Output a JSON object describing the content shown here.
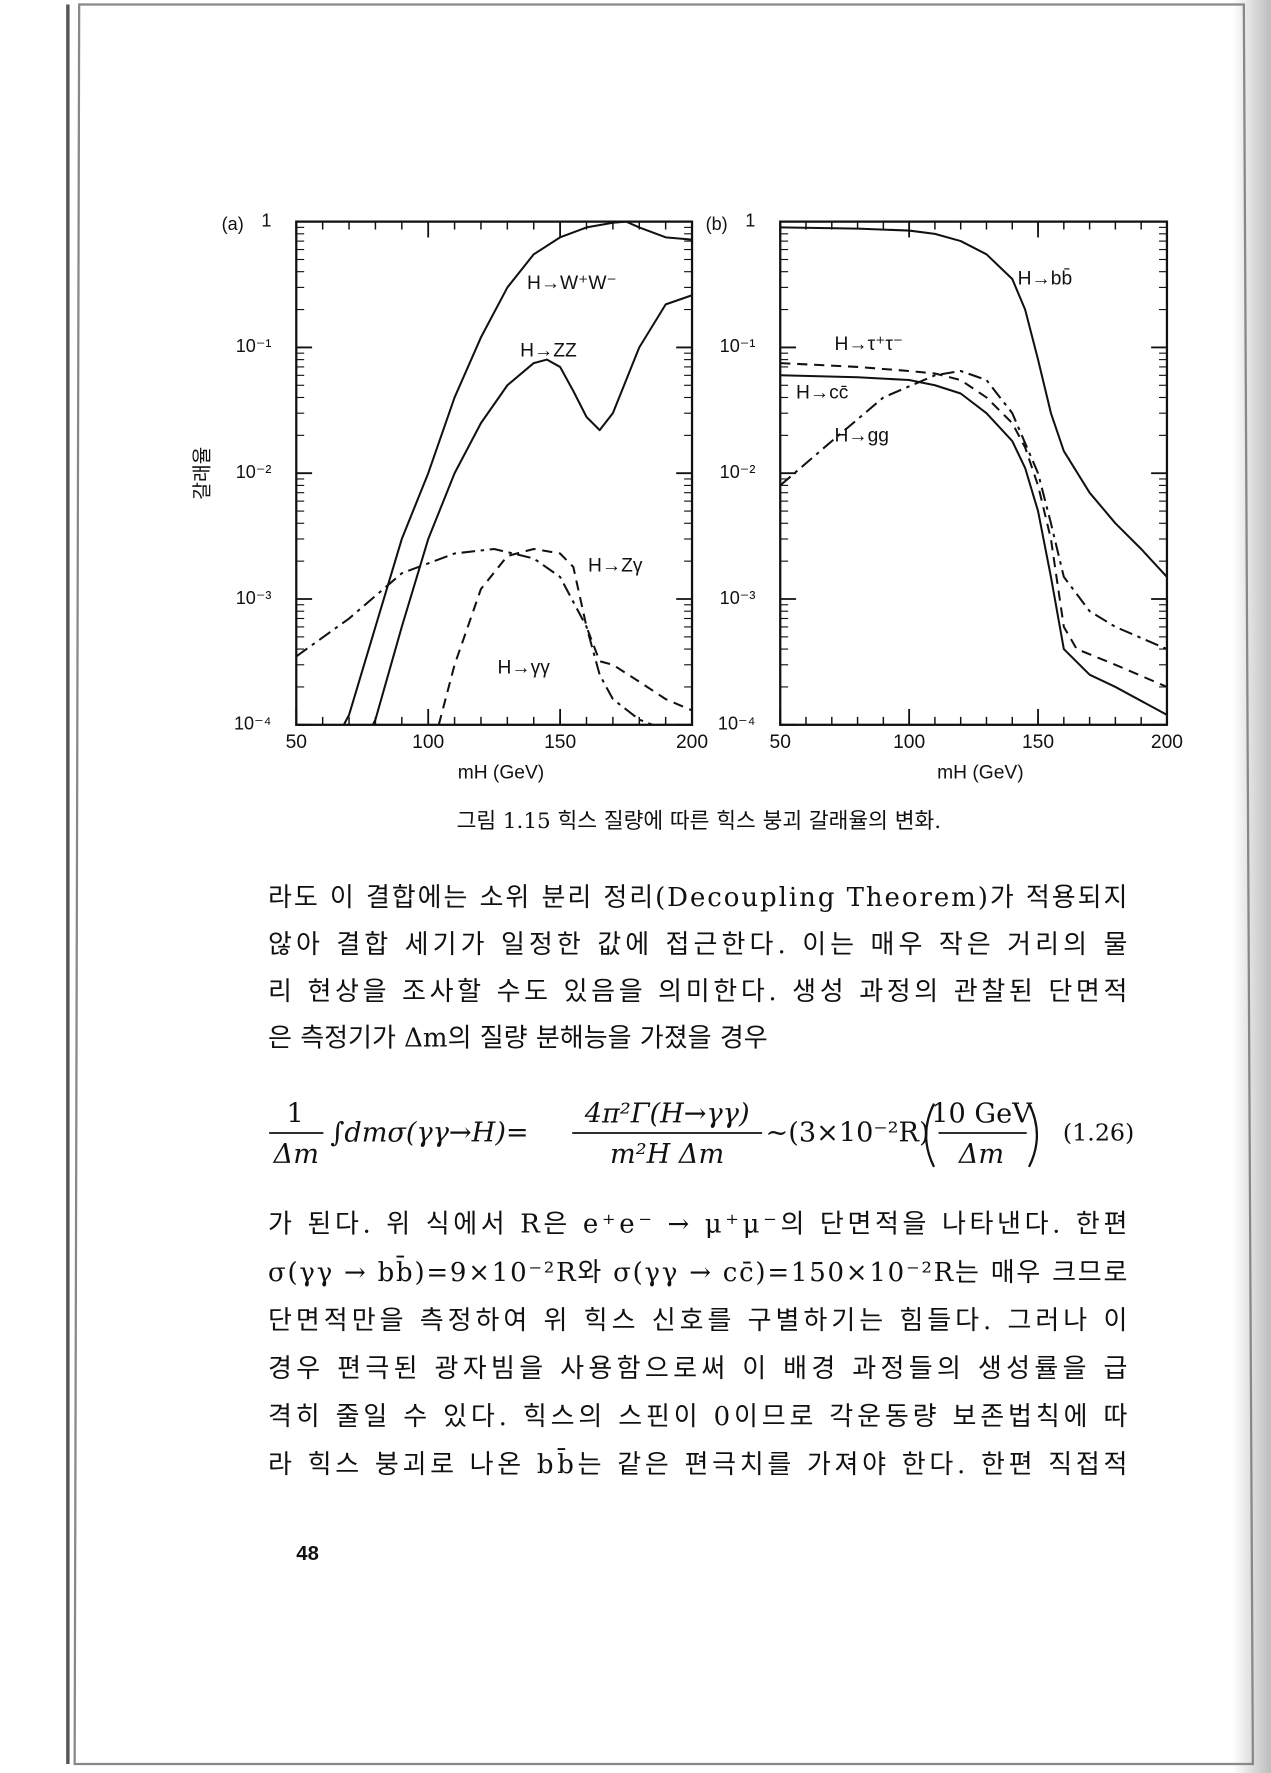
{
  "chart_data": [
    {
      "type": "line",
      "panel": "(a)",
      "x_label": "mH (GeV)",
      "y_label": "갈래율",
      "xlim": [
        50,
        200
      ],
      "xticks": [
        50,
        100,
        150,
        200
      ],
      "ylim": [
        0.0001,
        1
      ],
      "yticks": [
        {
          "value": 0.0001,
          "label": "10⁻⁴"
        },
        {
          "value": 0.001,
          "label": "10⁻³"
        },
        {
          "value": 0.01,
          "label": "10⁻²"
        },
        {
          "value": 0.1,
          "label": "10⁻¹"
        },
        1
      ],
      "log_y": true,
      "series": [
        {
          "name": "H→W⁺W⁻",
          "style": "solid",
          "color": "#111",
          "x": [
            68,
            70,
            80,
            90,
            100,
            110,
            120,
            130,
            140,
            150,
            160,
            170,
            175,
            180,
            190,
            200
          ],
          "values": [
            0.0001,
            0.00012,
            0.0006,
            0.003,
            0.01,
            0.04,
            0.12,
            0.3,
            0.55,
            0.75,
            0.9,
            0.98,
            1.0,
            0.9,
            0.75,
            0.72
          ]
        },
        {
          "name": "H→ZZ",
          "style": "solid",
          "color": "#111",
          "x": [
            79,
            80,
            90,
            100,
            110,
            120,
            130,
            140,
            145,
            150,
            155,
            160,
            165,
            170,
            180,
            190,
            200
          ],
          "values": [
            0.0001,
            0.00011,
            0.0006,
            0.003,
            0.01,
            0.025,
            0.05,
            0.075,
            0.08,
            0.07,
            0.045,
            0.028,
            0.022,
            0.03,
            0.1,
            0.22,
            0.26
          ]
        },
        {
          "name": "H→Zγ",
          "style": "dashed",
          "color": "#111",
          "x": [
            104,
            110,
            120,
            130,
            140,
            150,
            155,
            160,
            165,
            170,
            180,
            190,
            200
          ],
          "values": [
            0.0001,
            0.0003,
            0.0012,
            0.0022,
            0.0025,
            0.0023,
            0.0018,
            0.0006,
            0.00032,
            0.0003,
            0.00022,
            0.00016,
            0.00013
          ]
        },
        {
          "name": "H→γγ",
          "style": "dashdot",
          "color": "#111",
          "x": [
            50,
            70,
            90,
            110,
            125,
            140,
            150,
            160,
            165,
            170,
            180,
            185
          ],
          "values": [
            0.00035,
            0.0007,
            0.0016,
            0.0023,
            0.0025,
            0.0021,
            0.0015,
            0.0006,
            0.00025,
            0.00016,
            0.00011,
            0.0001
          ]
        }
      ]
    },
    {
      "type": "line",
      "panel": "(b)",
      "x_label": "mH (GeV)",
      "xlim": [
        50,
        200
      ],
      "xticks": [
        50,
        100,
        150,
        200
      ],
      "ylim": [
        0.0001,
        1
      ],
      "yticks": [
        {
          "value": 0.0001,
          "label": "10⁻⁴"
        },
        {
          "value": 0.001,
          "label": "10⁻³"
        },
        {
          "value": 0.01,
          "label": "10⁻²"
        },
        {
          "value": 0.1,
          "label": "10⁻¹"
        },
        1
      ],
      "log_y": true,
      "series": [
        {
          "name": "H→bb̄",
          "style": "solid",
          "color": "#111",
          "x": [
            50,
            80,
            100,
            110,
            120,
            130,
            140,
            145,
            150,
            155,
            160,
            170,
            180,
            190,
            200
          ],
          "values": [
            0.9,
            0.88,
            0.85,
            0.8,
            0.7,
            0.55,
            0.35,
            0.2,
            0.08,
            0.03,
            0.015,
            0.007,
            0.004,
            0.0025,
            0.0015
          ]
        },
        {
          "name": "H→τ⁺τ⁻",
          "style": "dashed",
          "color": "#111",
          "x": [
            50,
            80,
            100,
            110,
            120,
            130,
            140,
            145,
            150,
            155,
            160,
            165,
            180,
            200
          ],
          "values": [
            0.075,
            0.07,
            0.065,
            0.062,
            0.055,
            0.04,
            0.025,
            0.016,
            0.008,
            0.003,
            0.0006,
            0.0004,
            0.0003,
            0.0002
          ]
        },
        {
          "name": "H→cc̄",
          "style": "solid",
          "color": "#111",
          "x": [
            50,
            80,
            100,
            110,
            120,
            130,
            140,
            145,
            150,
            155,
            160,
            170,
            180,
            200
          ],
          "values": [
            0.06,
            0.058,
            0.055,
            0.05,
            0.043,
            0.03,
            0.018,
            0.011,
            0.005,
            0.0015,
            0.0004,
            0.00025,
            0.0002,
            0.00012
          ]
        },
        {
          "name": "H→gg",
          "style": "dashdot",
          "color": "#111",
          "x": [
            50,
            70,
            90,
            110,
            120,
            130,
            140,
            150,
            155,
            160,
            170,
            180,
            200
          ],
          "values": [
            0.008,
            0.018,
            0.04,
            0.06,
            0.065,
            0.055,
            0.03,
            0.01,
            0.004,
            0.0015,
            0.0008,
            0.0006,
            0.0004
          ]
        }
      ]
    }
  ],
  "caption": "그림 1.15  힉스 질량에 따른 힉스 붕괴 갈래율의 변화.",
  "paragraph_1": [
    "라도 이 결합에는 소위 분리 정리(Decoupling Theorem)가 적용되지",
    "않아 결합 세기가 일정한 값에 접근한다. 이는 매우 작은 거리의 물",
    "리 현상을 조사할 수도 있음을 의미한다. 생성 과정의 관찰된 단면적",
    "은 측정기가 Δm의 질량 분해능을 가졌을 경우"
  ],
  "equation": {
    "lhs_num": "1",
    "lhs_den": "Δm",
    "integral": "∫dmσ(γγ→H)=",
    "frac_num": "4π²Γ(H→γγ)",
    "frac_den": "m²H      Δm",
    "rhs": "~(3×10⁻²R)",
    "paren_num": "10 GeV",
    "paren_den": "Δm",
    "number": "(1.26)"
  },
  "paragraph_2": [
    "가 된다. 위 식에서 R은 e⁺e⁻ → μ⁺μ⁻의 단면적을 나타낸다. 한편",
    "σ(γγ → bb̄)=9×10⁻²R와  σ(γγ → cc̄)=150×10⁻²R는 매우 크므로",
    "단면적만을 측정하여 위 힉스 신호를 구별하기는 힘들다. 그러나 이",
    "경우 편극된 광자빔을 사용함으로써 이 배경 과정들의 생성률을 급",
    "격히 줄일 수 있다. 힉스의 스핀이 0이므로 각운동량 보존법칙에 따",
    "라 힉스 붕괴로 나온 bb̄는 같은 편극치를 가져야 한다. 한편 직접적"
  ],
  "page_number": "48"
}
